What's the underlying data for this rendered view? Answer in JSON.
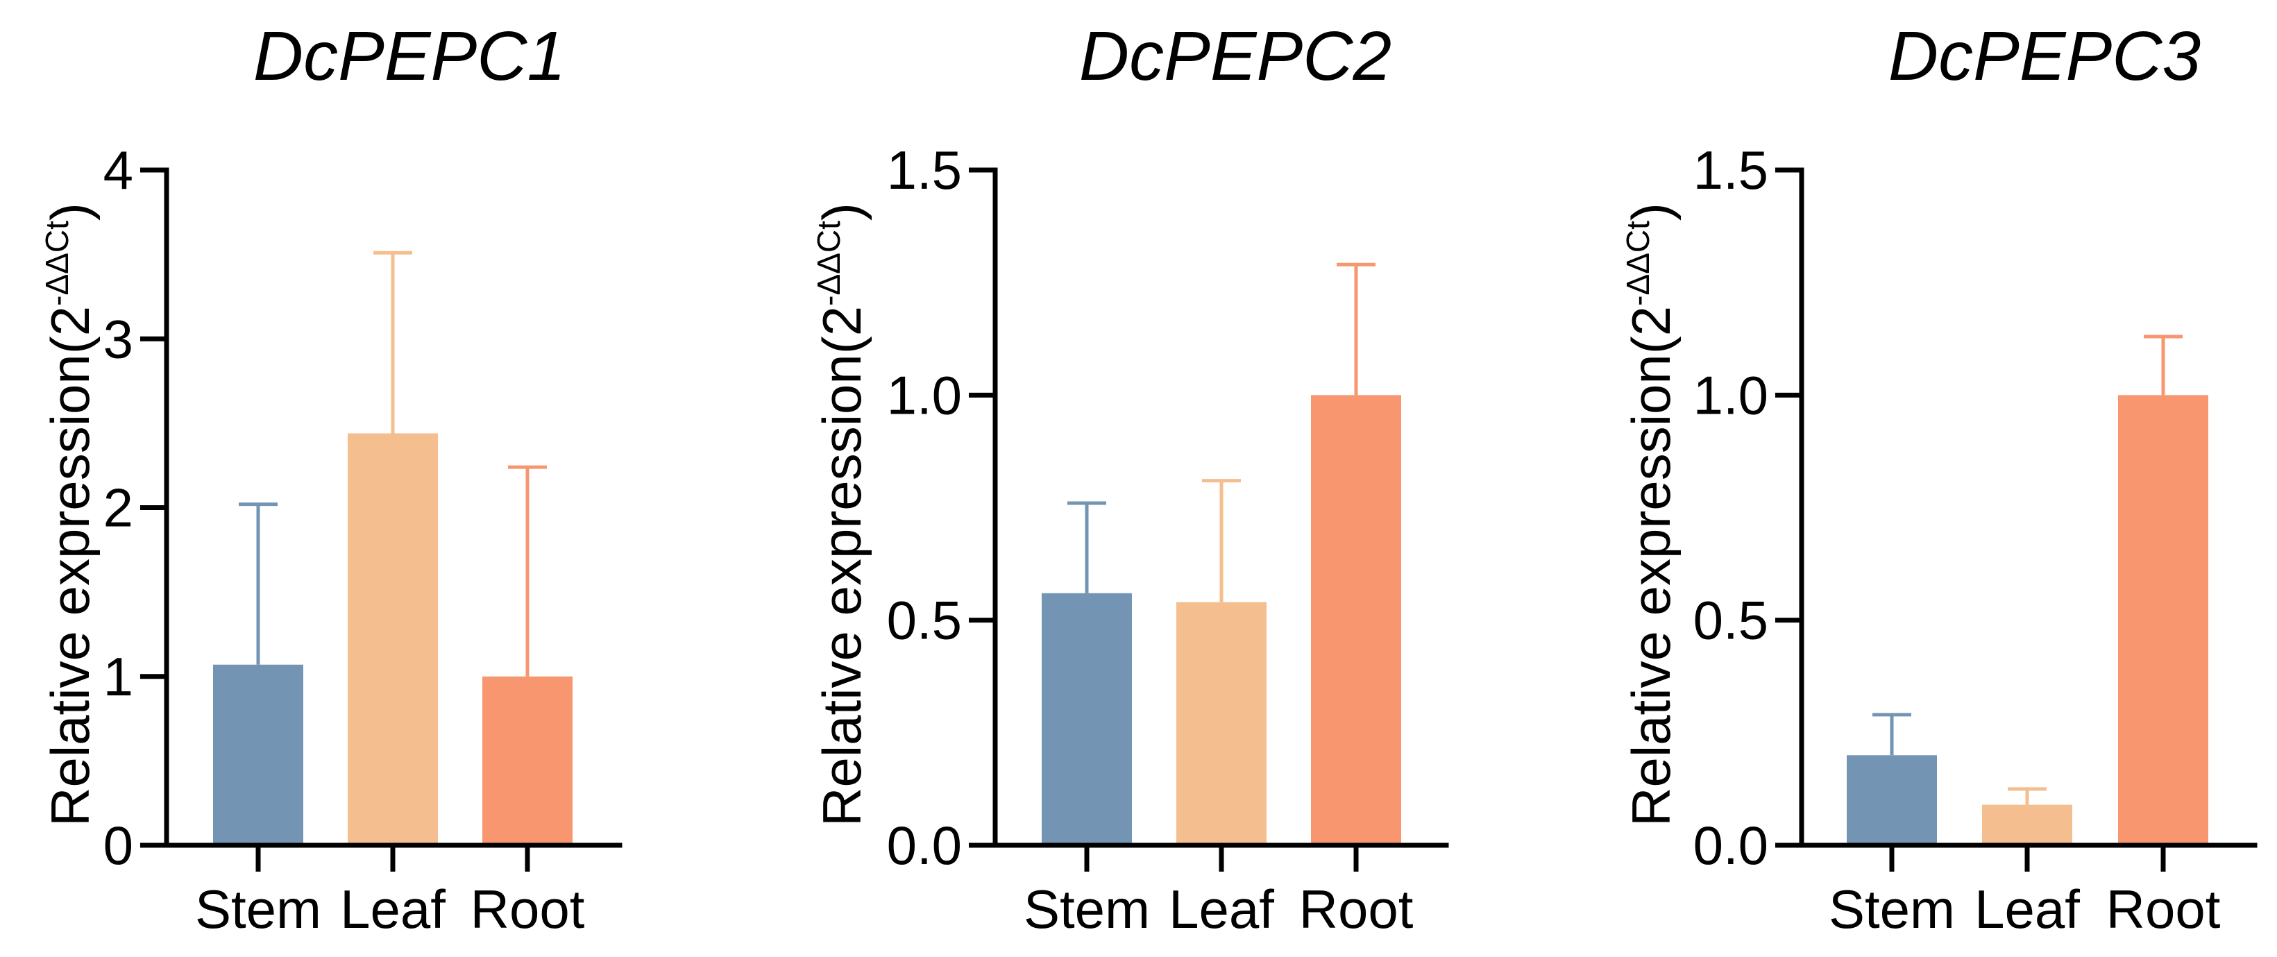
{
  "chart_data": [
    {
      "type": "bar",
      "title": "DcPEPC1",
      "categories": [
        "Stem",
        "Leaf",
        "Root"
      ],
      "values": [
        1.07,
        2.44,
        1.0
      ],
      "errors": [
        0.95,
        1.07,
        1.24
      ],
      "colors": [
        "#7395b3",
        "#f5be8e",
        "#f89670"
      ],
      "ylabel": "Relative expression(2",
      "ylabel_superscript": "-ΔΔCt",
      "ylabel_close": ")",
      "ylim": [
        0,
        4
      ],
      "yticks": [
        0,
        1,
        2,
        3,
        4
      ],
      "ytick_labels": [
        "0",
        "1",
        "2",
        "3",
        "4"
      ],
      "xlabel": ""
    },
    {
      "type": "bar",
      "title": "DcPEPC2",
      "categories": [
        "Stem",
        "Leaf",
        "Root"
      ],
      "values": [
        0.56,
        0.54,
        1.0
      ],
      "errors": [
        0.2,
        0.27,
        0.29
      ],
      "colors": [
        "#7395b3",
        "#f5be8e",
        "#f89670"
      ],
      "ylabel": "Relative expression(2",
      "ylabel_superscript": "-ΔΔCt",
      "ylabel_close": ")",
      "ylim": [
        0,
        1.5
      ],
      "yticks": [
        0,
        0.5,
        1.0,
        1.5
      ],
      "ytick_labels": [
        "0.0",
        "0.5",
        "1.0",
        "1.5"
      ],
      "xlabel": ""
    },
    {
      "type": "bar",
      "title": "DcPEPC3",
      "categories": [
        "Stem",
        "Leaf",
        "Root"
      ],
      "values": [
        0.2,
        0.09,
        1.0
      ],
      "errors": [
        0.09,
        0.035,
        0.13
      ],
      "colors": [
        "#7395b3",
        "#f5be8e",
        "#f89670"
      ],
      "ylabel": "Relative expression(2",
      "ylabel_superscript": "-ΔΔCt",
      "ylabel_close": ")",
      "ylim": [
        0,
        1.5
      ],
      "yticks": [
        0,
        0.5,
        1.0,
        1.5
      ],
      "ytick_labels": [
        "0.0",
        "0.5",
        "1.0",
        "1.5"
      ],
      "xlabel": ""
    }
  ]
}
